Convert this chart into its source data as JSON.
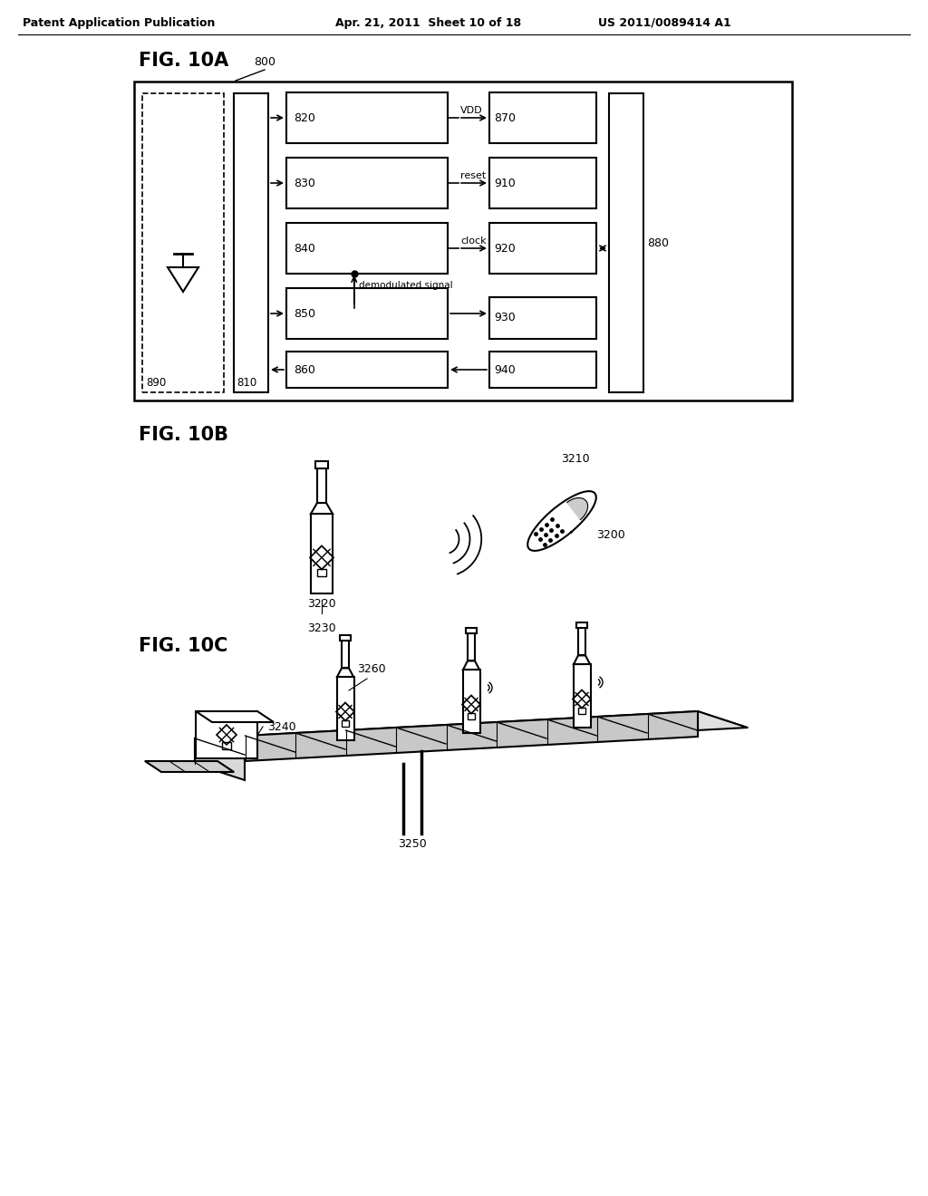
{
  "header_left": "Patent Application Publication",
  "header_center": "Apr. 21, 2011  Sheet 10 of 18",
  "header_right": "US 2011/0089414 A1",
  "bg_color": "#ffffff"
}
